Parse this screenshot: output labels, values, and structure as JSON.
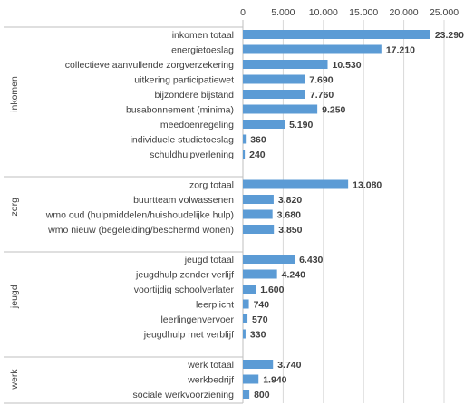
{
  "chart_data": {
    "type": "bar",
    "orientation": "horizontal",
    "xlim": [
      0,
      25000
    ],
    "x_ticks": [
      {
        "value": 0,
        "label": "0"
      },
      {
        "value": 5000,
        "label": "5.000"
      },
      {
        "value": 10000,
        "label": "10.000"
      },
      {
        "value": 15000,
        "label": "15.000"
      },
      {
        "value": 20000,
        "label": "20.000"
      },
      {
        "value": 25000,
        "label": "25.000"
      }
    ],
    "x_axis_position": "top",
    "grid": true,
    "bar_color": "#5b9bd5",
    "groups": [
      {
        "name": "inkomen",
        "items": [
          {
            "label": "inkomen totaal",
            "value": 23290,
            "value_label": "23.290"
          },
          {
            "label": "energietoeslag",
            "value": 17210,
            "value_label": "17.210"
          },
          {
            "label": "collectieve aanvullende zorgverzekering",
            "value": 10530,
            "value_label": "10.530"
          },
          {
            "label": "uitkering participatiewet",
            "value": 7690,
            "value_label": "7.690"
          },
          {
            "label": "bijzondere bijstand",
            "value": 7760,
            "value_label": "7.760"
          },
          {
            "label": "busabonnement (minima)",
            "value": 9250,
            "value_label": "9.250"
          },
          {
            "label": "meedoenregeling",
            "value": 5190,
            "value_label": "5.190"
          },
          {
            "label": "individuele studietoeslag",
            "value": 360,
            "value_label": "360"
          },
          {
            "label": "schuldhulpverlening",
            "value": 240,
            "value_label": "240"
          }
        ]
      },
      {
        "name": "zorg",
        "items": [
          {
            "label": "zorg totaal",
            "value": 13080,
            "value_label": "13.080"
          },
          {
            "label": "buurtteam volwassenen",
            "value": 3820,
            "value_label": "3.820"
          },
          {
            "label": "wmo oud (hulpmiddelen/huishoudelijke hulp)",
            "value": 3680,
            "value_label": "3.680"
          },
          {
            "label": "wmo nieuw (begeleiding/beschermd wonen)",
            "value": 3850,
            "value_label": "3.850"
          }
        ]
      },
      {
        "name": "jeugd",
        "items": [
          {
            "label": "jeugd totaal",
            "value": 6430,
            "value_label": "6.430"
          },
          {
            "label": "jeugdhulp zonder verlijf",
            "value": 4240,
            "value_label": "4.240"
          },
          {
            "label": "voortijdig schoolverlater",
            "value": 1600,
            "value_label": "1.600"
          },
          {
            "label": "leerplicht",
            "value": 740,
            "value_label": "740"
          },
          {
            "label": "leerlingenvervoer",
            "value": 570,
            "value_label": "570"
          },
          {
            "label": "jeugdhulp met verblijf",
            "value": 330,
            "value_label": "330"
          }
        ]
      },
      {
        "name": "werk",
        "items": [
          {
            "label": "werk totaal",
            "value": 3740,
            "value_label": "3.740"
          },
          {
            "label": "werkbedrijf",
            "value": 1940,
            "value_label": "1.940"
          },
          {
            "label": "sociale werkvoorziening",
            "value": 800,
            "value_label": "800"
          }
        ]
      }
    ]
  }
}
